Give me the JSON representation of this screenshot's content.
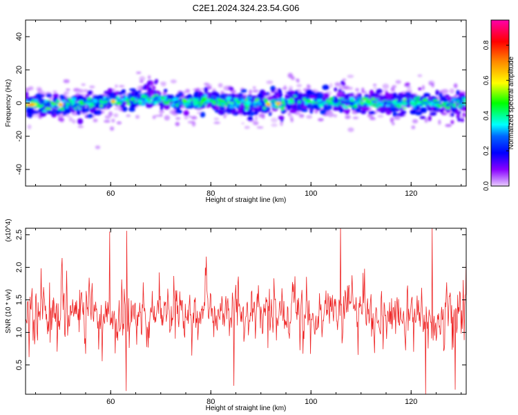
{
  "title": "C2E1.2024.324.23.54.G06",
  "chart_data": [
    {
      "type": "heatmap",
      "xlabel": "Height of straight line (km)",
      "ylabel": "Frequency (Hz)",
      "xlim": [
        43,
        131
      ],
      "ylim": [
        -50,
        50
      ],
      "xticks": [
        60,
        80,
        100,
        120
      ],
      "yticks": [
        -40,
        -20,
        0,
        20,
        40
      ],
      "colorbar": {
        "label": "Normalized spectral amplitude",
        "range": [
          0.0,
          0.9
        ],
        "ticks": [
          0.0,
          0.2,
          0.4,
          0.6,
          0.8
        ],
        "colormap": [
          "#ff00aa",
          "#ff0000",
          "#ff8800",
          "#ffff00",
          "#00ff00",
          "#00ffff",
          "#0066ff",
          "#0000ff",
          "#8800ff",
          "#e8ccff"
        ]
      },
      "band": {
        "center_hz": [
          [
            44,
            -1
          ],
          [
            48,
            -1
          ],
          [
            52,
            -1
          ],
          [
            56,
            0
          ],
          [
            60,
            1
          ],
          [
            64,
            2
          ],
          [
            68,
            3
          ],
          [
            72,
            1
          ],
          [
            76,
            0
          ],
          [
            80,
            1
          ],
          [
            84,
            0
          ],
          [
            88,
            0
          ],
          [
            92,
            -1
          ],
          [
            96,
            1
          ],
          [
            100,
            0
          ],
          [
            104,
            1
          ],
          [
            108,
            0
          ],
          [
            112,
            0
          ],
          [
            116,
            0
          ],
          [
            120,
            0
          ],
          [
            124,
            0
          ],
          [
            128,
            -1
          ],
          [
            131,
            0
          ]
        ],
        "half_width_hz": 6,
        "peak_amplitude": 0.9,
        "hotspots_km": [
          44,
          50,
          60.5,
          91.5,
          93.5
        ]
      }
    },
    {
      "type": "line",
      "xlabel": "Height of straight line (km)",
      "ylabel": "SNR (10 * v/v)",
      "yunit": "(x10^4)",
      "xlim": [
        43,
        131
      ],
      "ylim": [
        0.05,
        2.6
      ],
      "xticks": [
        60,
        80,
        100,
        120
      ],
      "yticks": [
        0.5,
        1.0,
        1.5,
        2.0,
        2.5
      ],
      "series": [
        {
          "color": "#ee2222",
          "x_range": [
            43,
            131
          ],
          "sample_step_km": 0.1,
          "mean": 1.3,
          "typical_min": 0.6,
          "typical_max": 2.2,
          "peaks": [
            [
              59.8,
              2.55
            ],
            [
              63.2,
              2.56
            ],
            [
              105.9,
              2.65
            ],
            [
              124.2,
              2.6
            ],
            [
              131,
              2.2
            ]
          ],
          "troughs": [
            [
              63.1,
              0.1
            ],
            [
              84.6,
              0.18
            ],
            [
              122.9,
              0.05
            ],
            [
              128.8,
              0.12
            ]
          ]
        }
      ]
    }
  ]
}
